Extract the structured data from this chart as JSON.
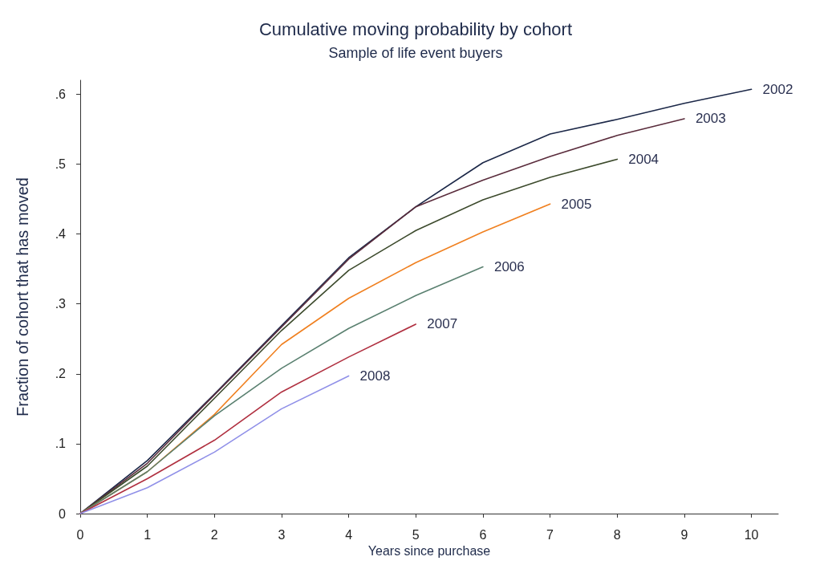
{
  "chart_data": {
    "type": "line",
    "title": "Cumulative moving probability by cohort",
    "subtitle": "Sample of life event buyers",
    "xlabel": "Years since purchase",
    "ylabel": "Fraction of cohort that has moved",
    "xlim": [
      0,
      10.4
    ],
    "xticks": [
      0,
      1,
      2,
      3,
      4,
      5,
      6,
      7,
      8,
      9,
      10
    ],
    "ylim": [
      0,
      0.62
    ],
    "yticks": [
      0,
      {
        "value": 0.1,
        "label": ".1"
      },
      {
        "value": 0.2,
        "label": ".2"
      },
      {
        "value": 0.3,
        "label": ".3"
      },
      {
        "value": 0.4,
        "label": ".4"
      },
      {
        "value": 0.5,
        "label": ".5"
      },
      {
        "value": 0.6,
        "label": ".6"
      }
    ],
    "grid": false,
    "legend": false,
    "marker": "none",
    "line_style": "solid",
    "series": [
      {
        "name": "2002",
        "color": "#1c2848",
        "x": [
          0,
          1,
          2,
          3,
          4,
          5,
          6,
          7,
          8,
          9,
          10
        ],
        "values": [
          0,
          0.076,
          0.171,
          0.269,
          0.366,
          0.439,
          0.502,
          0.543,
          0.564,
          0.587,
          0.607
        ]
      },
      {
        "name": "2003",
        "color": "#5a2c3c",
        "x": [
          0,
          1,
          2,
          3,
          4,
          5,
          6,
          7,
          8,
          9
        ],
        "values": [
          0,
          0.072,
          0.17,
          0.267,
          0.364,
          0.439,
          0.477,
          0.511,
          0.541,
          0.565
        ]
      },
      {
        "name": "2004",
        "color": "#3c4a2c",
        "x": [
          0,
          1,
          2,
          3,
          4,
          5,
          6,
          7,
          8
        ],
        "values": [
          0,
          0.068,
          0.165,
          0.262,
          0.348,
          0.405,
          0.449,
          0.481,
          0.507
        ]
      },
      {
        "name": "2005",
        "color": "#f08020",
        "x": [
          0,
          1,
          2,
          3,
          4,
          5,
          6,
          7
        ],
        "values": [
          0,
          0.06,
          0.142,
          0.242,
          0.308,
          0.359,
          0.403,
          0.443
        ]
      },
      {
        "name": "2006",
        "color": "#5a8070",
        "x": [
          0,
          1,
          2,
          3,
          4,
          5,
          6
        ],
        "values": [
          0,
          0.06,
          0.14,
          0.208,
          0.265,
          0.312,
          0.353
        ]
      },
      {
        "name": "2007",
        "color": "#b03040",
        "x": [
          0,
          1,
          2,
          3,
          4,
          5
        ],
        "values": [
          0,
          0.05,
          0.105,
          0.174,
          0.224,
          0.271
        ]
      },
      {
        "name": "2008",
        "color": "#9090e8",
        "x": [
          0,
          1,
          2,
          3,
          4
        ],
        "values": [
          0,
          0.037,
          0.088,
          0.15,
          0.197
        ]
      }
    ]
  }
}
